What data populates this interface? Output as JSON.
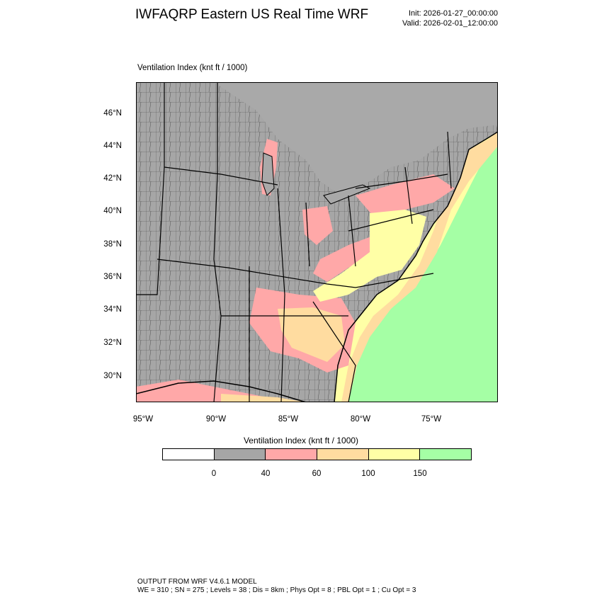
{
  "header": {
    "title": "IWFAQRP Eastern US Real Time WRF",
    "init": "Init: 2026-01-27_00:00:00",
    "valid": "Valid: 2026-02-01_12:00:00"
  },
  "map": {
    "field_label": "Ventilation Index   (knt ft / 1000)",
    "lat_labels": [
      "46°N",
      "44°N",
      "42°N",
      "40°N",
      "38°N",
      "36°N",
      "34°N",
      "32°N",
      "30°N"
    ],
    "lon_labels": [
      "95°W",
      "90°W",
      "85°W",
      "80°W",
      "75°W"
    ],
    "colors": {
      "outside": "#a9a9a9",
      "v0_40": "#a6a6a6",
      "v40_60": "#ffa8a8",
      "v60_100": "#ffdca0",
      "v100_150": "#ffffa6",
      "v150_plus": "#a5ffa5"
    }
  },
  "colorbar": {
    "title": "Ventilation Index  (knt ft / 1000)",
    "colors": [
      "#ffffff",
      "#a6a6a6",
      "#ffa8a8",
      "#ffdca0",
      "#ffffa6",
      "#a5ffa5"
    ],
    "labels": [
      "0",
      "40",
      "60",
      "100",
      "150"
    ]
  },
  "footer": {
    "line1": "OUTPUT FROM WRF V4.6.1 MODEL",
    "line2": "WE = 310 ; SN = 275 ; Levels = 38 ; Dis = 8km ; Phys Opt = 8 ; PBL Opt = 1 ; Cu Opt = 3"
  }
}
